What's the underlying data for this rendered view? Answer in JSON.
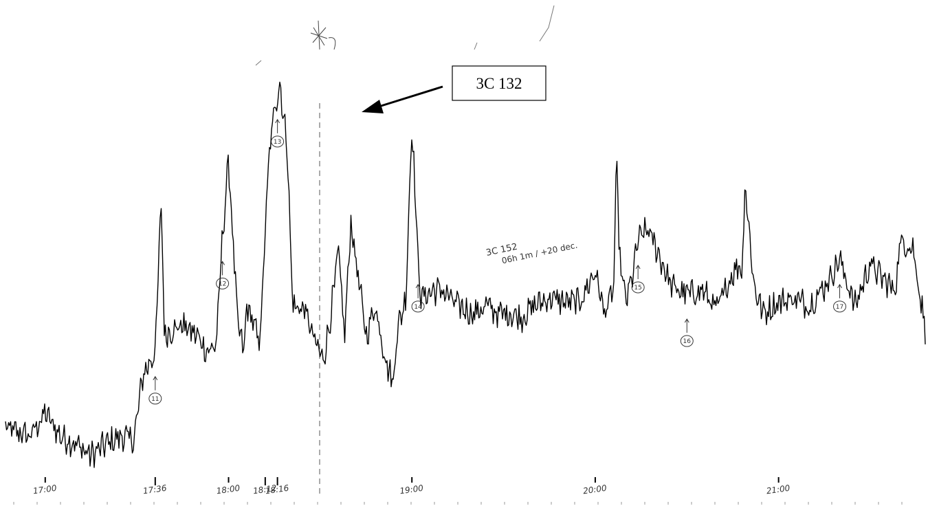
{
  "chart_data": {
    "type": "line",
    "title": "",
    "xlabel": "",
    "ylabel": "",
    "x_ticks": [
      "17:00",
      "18:00",
      "19:00",
      "20:00",
      "21:00"
    ],
    "extra_time_labels": [
      "17:36",
      "18:12",
      "18:16"
    ],
    "xlim": [
      "16:47",
      "21:48"
    ],
    "ylim": [
      0,
      100
    ],
    "grid": false,
    "legend": "none",
    "series": [
      {
        "x": [
          "16:47",
          "16:55",
          "17:00",
          "17:05",
          "17:10",
          "17:15",
          "17:20",
          "17:25",
          "17:29",
          "17:32",
          "17:36",
          "17:38",
          "17:39",
          "17:40",
          "17:45",
          "17:50",
          "17:53",
          "17:56",
          "17:58",
          "18:00",
          "18:03",
          "18:05",
          "18:06",
          "18:08",
          "18:10",
          "18:11",
          "18:13",
          "18:15",
          "18:17",
          "18:18",
          "18:19",
          "18:21",
          "18:25",
          "18:28",
          "18:31",
          "18:33",
          "18:36",
          "18:38",
          "18:40",
          "18:45",
          "18:48",
          "18:52",
          "18:54",
          "18:55",
          "18:58",
          "19:00",
          "19:02",
          "19:03",
          "19:05",
          "19:07",
          "19:10",
          "19:15",
          "19:20",
          "19:25",
          "19:28",
          "19:32",
          "19:36",
          "19:40",
          "19:45",
          "19:50",
          "19:55",
          "20:00",
          "20:03",
          "20:06",
          "20:07",
          "20:08",
          "20:10",
          "20:12",
          "20:14",
          "20:17",
          "20:20",
          "20:25",
          "20:30",
          "20:35",
          "20:40",
          "20:44",
          "20:47",
          "20:48",
          "20:49",
          "20:52",
          "20:55",
          "21:00",
          "21:05",
          "21:10",
          "21:15",
          "21:20",
          "21:25",
          "21:30",
          "21:33",
          "21:38",
          "21:40",
          "21:44",
          "21:48"
        ],
        "y": [
          8,
          6,
          12,
          6,
          4,
          1,
          4,
          6,
          5,
          22,
          28,
          68,
          32,
          33,
          35,
          32,
          28,
          30,
          58,
          78,
          35,
          28,
          40,
          36,
          30,
          42,
          76,
          92,
          98,
          88,
          85,
          40,
          39,
          31,
          26,
          35,
          54,
          32,
          62,
          32,
          40,
          24,
          20,
          33,
          42,
          88,
          52,
          42,
          43,
          44,
          44,
          40,
          38,
          40,
          38,
          38,
          37,
          40,
          42,
          41,
          41,
          49,
          38,
          44,
          78,
          52,
          41,
          47,
          57,
          60,
          55,
          45,
          43,
          44,
          39,
          47,
          51,
          48,
          72,
          45,
          38,
          41,
          42,
          40,
          45,
          52,
          40,
          51,
          48,
          44,
          57,
          55,
          34
        ]
      }
    ],
    "annotations": [
      {
        "text": "3C 132",
        "at": "18:16"
      },
      {
        "text": "3C 152",
        "at": "19:02"
      },
      {
        "text": "06h 1m / +20 dec.",
        "at": "19:02"
      }
    ],
    "markers": [
      {
        "label": "11",
        "at": "17:36"
      },
      {
        "label": "12",
        "at": "17:58"
      },
      {
        "label": "13",
        "at": "18:16"
      },
      {
        "label": "14",
        "at": "19:02"
      },
      {
        "label": "15",
        "at": "20:14"
      },
      {
        "label": "16",
        "at": "20:30"
      },
      {
        "label": "17",
        "at": "21:20"
      }
    ]
  }
}
